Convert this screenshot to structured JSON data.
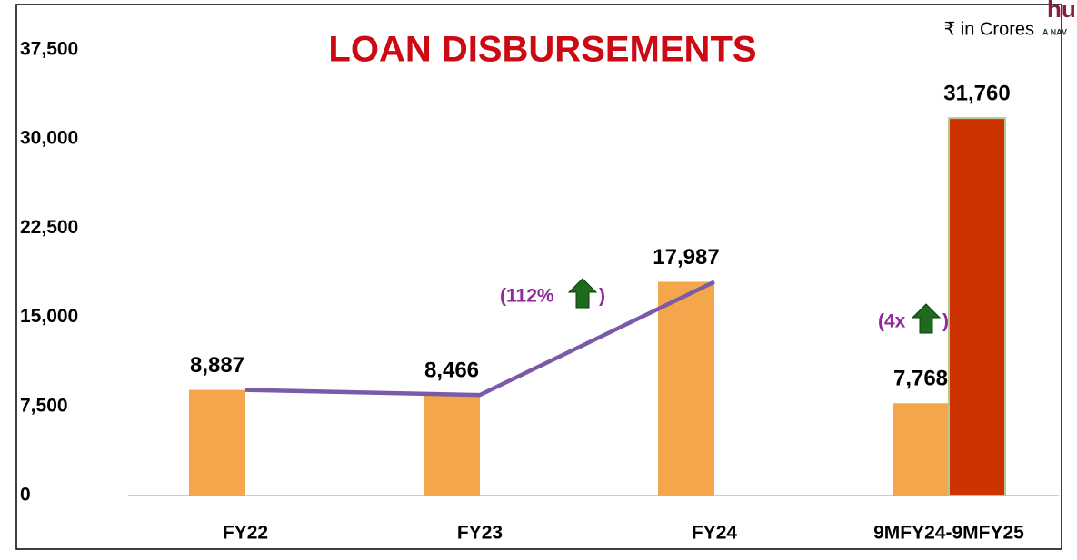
{
  "chart_data": {
    "type": "bar",
    "title": "LOAN DISBURSEMENTS",
    "unit_note": "₹ in Crores",
    "logo": {
      "mark": "hu",
      "tagline": "A NAV"
    },
    "categories": [
      "FY22",
      "FY23",
      "FY24",
      "9MFY24-9MFY25"
    ],
    "series": [
      {
        "color": "#f4a64a",
        "values": [
          8887,
          8466,
          17987,
          7768
        ],
        "value_labels": [
          "8,887",
          "8,466",
          "17,987",
          "7,768"
        ]
      },
      {
        "color": "#cc3300",
        "values": [
          null,
          null,
          null,
          31760
        ],
        "value_labels": [
          null,
          null,
          null,
          "31,760"
        ]
      },
      {
        "type": "line",
        "color": "#7b5aa8",
        "values": [
          8887,
          8466,
          17987,
          null
        ]
      }
    ],
    "annotations": [
      {
        "parts": [
          "(112%",
          ")"
        ]
      },
      {
        "parts": [
          "(4x",
          ")"
        ]
      }
    ],
    "ylim": [
      0,
      37500
    ],
    "yticks": [
      0,
      {
        "value": 7500,
        "label": "7,500"
      },
      {
        "value": 15000,
        "label": "15,000"
      },
      {
        "value": 22500,
        "label": "22,500"
      },
      {
        "value": 30000,
        "label": "30,000"
      },
      {
        "value": 37500,
        "label": "37,500"
      }
    ],
    "grid": false
  }
}
